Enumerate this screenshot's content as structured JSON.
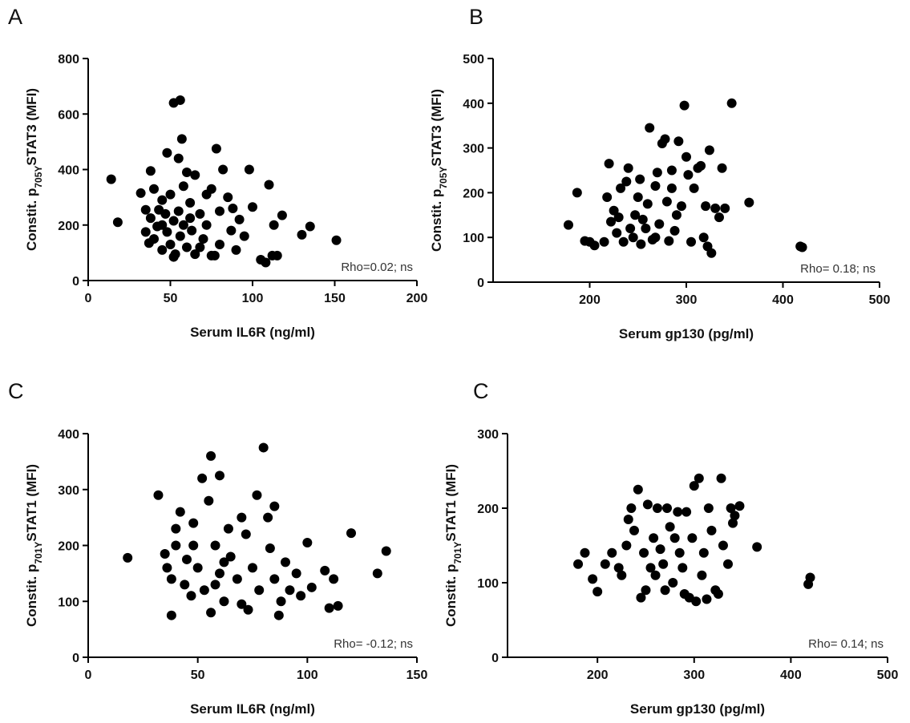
{
  "chart_data": [
    {
      "type": "scatter",
      "panel": "A",
      "xlabel": "Serum IL6R (ng/ml)",
      "ylabel": [
        "Constit. p",
        "705Y",
        "STAT3 (MFI)"
      ],
      "annotation": "Rho=0.02; ns",
      "color": "#000000",
      "xlim": [
        0,
        200
      ],
      "ylim": [
        0,
        800
      ],
      "xticks": [
        0,
        50,
        100,
        150,
        200
      ],
      "yticks": [
        0,
        200,
        400,
        600,
        800
      ],
      "x": [
        14,
        18,
        32,
        35,
        35,
        37,
        38,
        38,
        40,
        40,
        42,
        43,
        45,
        45,
        47,
        48,
        48,
        50,
        50,
        52,
        52,
        53,
        55,
        55,
        56,
        56,
        57,
        58,
        58,
        60,
        60,
        62,
        63,
        65,
        65,
        68,
        70,
        72,
        72,
        75,
        77,
        78,
        80,
        80,
        82,
        85,
        87,
        90,
        92,
        95,
        98,
        100,
        105,
        108,
        110,
        112,
        113,
        115,
        118,
        130,
        135,
        151,
        62,
        45,
        75,
        88,
        68,
        52
      ],
      "values": [
        365,
        210,
        315,
        255,
        175,
        135,
        395,
        225,
        330,
        150,
        195,
        255,
        290,
        110,
        240,
        460,
        175,
        310,
        130,
        215,
        640,
        95,
        250,
        440,
        650,
        160,
        510,
        340,
        200,
        390,
        120,
        280,
        180,
        380,
        95,
        240,
        150,
        310,
        200,
        330,
        90,
        475,
        250,
        130,
        400,
        300,
        180,
        110,
        220,
        160,
        400,
        265,
        75,
        65,
        345,
        90,
        200,
        90,
        235,
        165,
        195,
        145,
        225,
        200,
        90,
        260,
        120,
        85
      ]
    },
    {
      "type": "scatter",
      "panel": "B",
      "xlabel": "Serum gp130 (pg/ml)",
      "ylabel": [
        "Constit. p",
        "705Y",
        "STAT3 (MFI)"
      ],
      "annotation": "Rho= 0.18; ns",
      "color": "#000000",
      "xlim": [
        100,
        500
      ],
      "ylim": [
        0,
        500
      ],
      "xticks": [
        200,
        300,
        400,
        500
      ],
      "yticks": [
        0,
        100,
        200,
        300,
        400,
        500
      ],
      "x": [
        178,
        187,
        195,
        200,
        205,
        215,
        218,
        220,
        222,
        225,
        228,
        230,
        232,
        235,
        238,
        240,
        242,
        245,
        247,
        250,
        252,
        253,
        255,
        258,
        260,
        262,
        265,
        268,
        270,
        272,
        275,
        278,
        280,
        282,
        285,
        288,
        290,
        292,
        295,
        298,
        300,
        302,
        305,
        308,
        312,
        315,
        318,
        320,
        322,
        324,
        326,
        330,
        334,
        337,
        340,
        347,
        365,
        418,
        420,
        268,
        285
      ],
      "values": [
        128,
        200,
        92,
        90,
        82,
        90,
        190,
        265,
        135,
        160,
        110,
        145,
        210,
        90,
        225,
        255,
        120,
        100,
        150,
        190,
        230,
        85,
        140,
        120,
        175,
        345,
        95,
        215,
        245,
        130,
        310,
        320,
        180,
        92,
        210,
        115,
        150,
        315,
        170,
        395,
        280,
        240,
        90,
        210,
        255,
        260,
        100,
        170,
        80,
        295,
        65,
        165,
        145,
        255,
        165,
        400,
        178,
        80,
        78,
        100,
        250
      ]
    },
    {
      "type": "scatter",
      "panel": "C",
      "xlabel": "Serum IL6R (ng/ml)",
      "ylabel": [
        "Constit. p",
        "701Y",
        "STAT1 (MFI)"
      ],
      "annotation": "Rho= -0.12; ns",
      "color": "#000000",
      "xlim": [
        0,
        150
      ],
      "ylim": [
        0,
        400
      ],
      "xticks": [
        0,
        50,
        100,
        150
      ],
      "yticks": [
        0,
        100,
        200,
        300,
        400
      ],
      "x": [
        18,
        32,
        35,
        36,
        38,
        38,
        40,
        40,
        42,
        44,
        45,
        47,
        48,
        50,
        52,
        53,
        55,
        56,
        56,
        58,
        60,
        60,
        62,
        64,
        65,
        68,
        70,
        72,
        73,
        75,
        77,
        78,
        80,
        82,
        83,
        85,
        85,
        87,
        88,
        90,
        92,
        95,
        97,
        100,
        102,
        108,
        110,
        112,
        114,
        120,
        132,
        136,
        62,
        48,
        70,
        58
      ],
      "values": [
        178,
        290,
        185,
        160,
        75,
        140,
        230,
        200,
        260,
        130,
        175,
        110,
        240,
        160,
        320,
        120,
        280,
        360,
        80,
        200,
        325,
        150,
        100,
        230,
        180,
        140,
        250,
        220,
        85,
        160,
        290,
        120,
        375,
        250,
        195,
        270,
        140,
        75,
        100,
        170,
        120,
        150,
        110,
        205,
        125,
        155,
        88,
        140,
        92,
        222,
        150,
        190,
        170,
        200,
        95,
        130
      ]
    },
    {
      "type": "scatter",
      "panel": "C",
      "xlabel": "Serum gp130 (pg/ml)",
      "ylabel": [
        "Constit. p",
        "701Y",
        "STAT1 (MFI)"
      ],
      "annotation": "Rho= 0.14; ns",
      "color": "#000000",
      "xlim": [
        107,
        500
      ],
      "ylim": [
        0,
        300
      ],
      "xticks": [
        200,
        300,
        400,
        500
      ],
      "yticks": [
        0,
        100,
        200,
        300
      ],
      "x": [
        180,
        187,
        195,
        200,
        208,
        215,
        222,
        225,
        230,
        232,
        235,
        238,
        242,
        245,
        248,
        250,
        252,
        255,
        258,
        260,
        262,
        265,
        268,
        270,
        272,
        275,
        278,
        280,
        283,
        285,
        288,
        290,
        292,
        295,
        298,
        300,
        302,
        305,
        308,
        310,
        313,
        315,
        318,
        322,
        325,
        328,
        330,
        335,
        338,
        340,
        342,
        347,
        365,
        418,
        420
      ],
      "values": [
        125,
        140,
        105,
        88,
        125,
        140,
        120,
        110,
        150,
        185,
        200,
        170,
        225,
        80,
        140,
        90,
        205,
        120,
        160,
        110,
        200,
        145,
        125,
        90,
        200,
        175,
        100,
        160,
        195,
        140,
        120,
        85,
        195,
        80,
        160,
        230,
        75,
        240,
        110,
        140,
        78,
        200,
        170,
        90,
        85,
        240,
        150,
        125,
        200,
        180,
        190,
        203,
        148,
        98,
        107
      ]
    }
  ]
}
